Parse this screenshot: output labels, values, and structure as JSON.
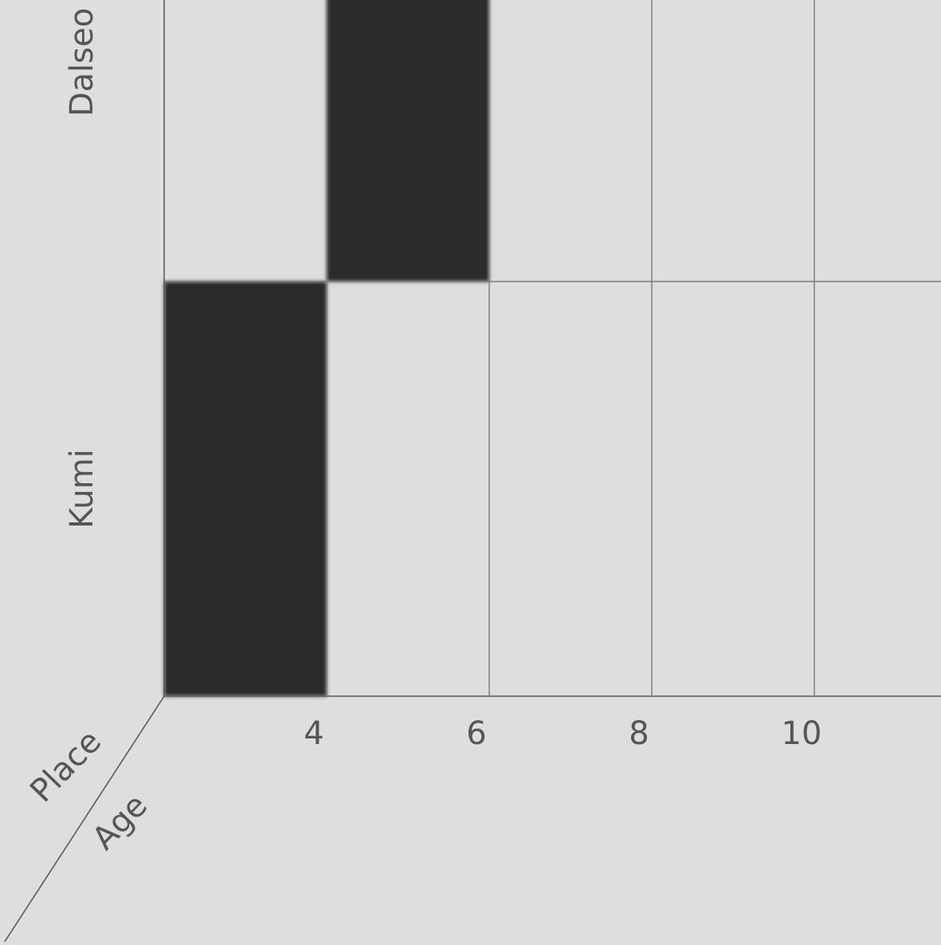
{
  "chart_data": {
    "type": "bar",
    "orientation": "timeline",
    "ylabel": "Place",
    "xlabel": "Age",
    "rows": [
      "Dalseo",
      "Kumi"
    ],
    "bars": [
      {
        "row": "Kumi",
        "start": 2,
        "end": 4
      },
      {
        "row": "Dalseo",
        "start": 4,
        "end": 6
      }
    ],
    "x_ticks": [
      "4",
      "6",
      "8",
      "10"
    ],
    "xlim": [
      2,
      11.6
    ],
    "grid": true,
    "legend": "none",
    "bar_color": "#2b2b2b",
    "grid_color": "#7a7a7a",
    "background_color": "#dedede"
  }
}
